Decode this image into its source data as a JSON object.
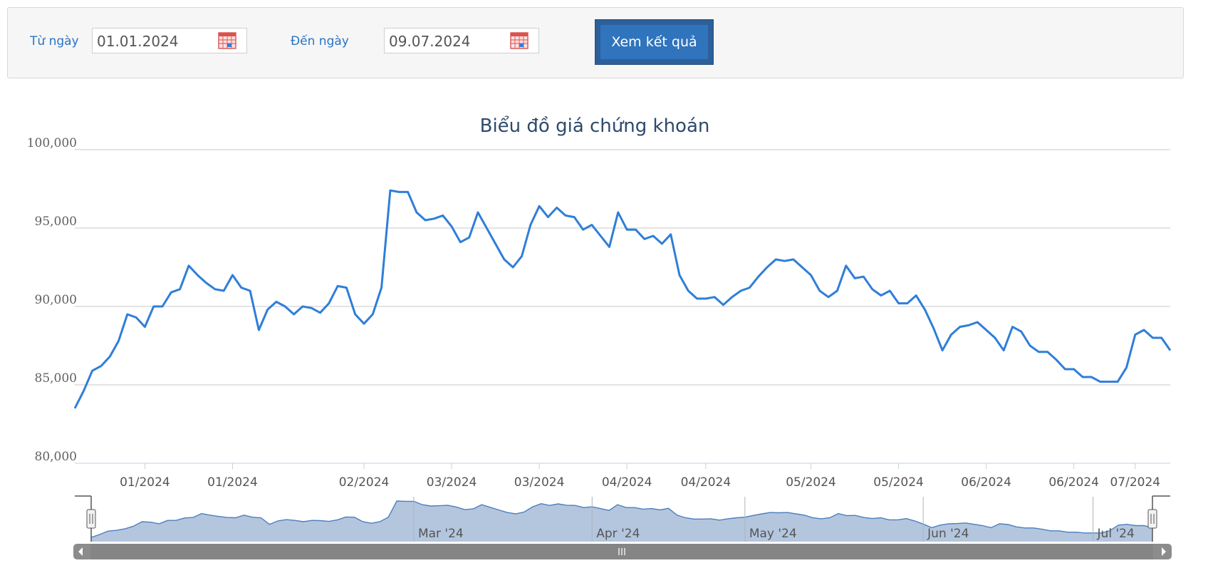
{
  "filter": {
    "from_label": "Từ ngày",
    "from_value": "01.01.2024",
    "to_label": "Đến ngày",
    "to_value": "09.07.2024",
    "submit_label": "Xem kết quả"
  },
  "chart_data": {
    "type": "line",
    "title": "Biểu đồ giá chứng khoán",
    "ylim": [
      80000,
      100000
    ],
    "yticks": [
      "100,000",
      "95,000",
      "90,000",
      "85,000",
      "80,000"
    ],
    "ytick_values": [
      100000,
      95000,
      90000,
      85000,
      80000
    ],
    "xtick_labels": [
      "01/2024",
      "01/2024",
      "02/2024",
      "03/2024",
      "03/2024",
      "04/2024",
      "04/2024",
      "05/2024",
      "05/2024",
      "06/2024",
      "06/2024",
      "07/2024"
    ],
    "xtick_index": [
      8,
      18,
      33,
      43,
      53,
      63,
      72,
      84,
      94,
      104,
      114,
      121
    ],
    "grid": true,
    "legend": "none",
    "series_color": "#2f7ed8",
    "navigator_labels": [
      "Mar '24",
      "Apr '24",
      "May '24",
      "Jun '24",
      "Jul '24"
    ],
    "navigator_index": [
      38,
      59,
      77,
      98,
      118
    ],
    "series": [
      {
        "values": [
          83500,
          84600,
          85900,
          86200,
          86800,
          87800,
          89500,
          89300,
          88700,
          90000,
          90000,
          90900,
          91100,
          92600,
          92000,
          91500,
          91100,
          91000,
          92000,
          91200,
          91000,
          88500,
          89800,
          90300,
          90000,
          89500,
          90000,
          89900,
          89600,
          90200,
          91300,
          91200,
          89500,
          88900,
          89500,
          91200,
          97400,
          97300,
          97300,
          96000,
          95500,
          95600,
          95800,
          95100,
          94100,
          94400,
          96000,
          95000,
          94000,
          93000,
          92500,
          93200,
          95200,
          96400,
          95700,
          96300,
          95800,
          95700,
          94900,
          95200,
          94500,
          93800,
          96000,
          94900,
          94900,
          94300,
          94500,
          94000,
          94600,
          92000,
          91000,
          90500,
          90500,
          90600,
          90100,
          90600,
          91000,
          91200,
          91900,
          92500,
          93000,
          92900,
          93000,
          92500,
          92000,
          91000,
          90600,
          91000,
          92600,
          91800,
          91900,
          91100,
          90700,
          91000,
          90200,
          90200,
          90700,
          89800,
          88600,
          87200,
          88200,
          88700,
          88800,
          89000,
          88500,
          88000,
          87200,
          88700,
          88400,
          87500,
          87100,
          87100,
          86600,
          86000,
          86000,
          85500,
          85500,
          85200,
          85200,
          85200,
          86100,
          88200,
          88500,
          88000,
          88000,
          87200
        ]
      }
    ]
  }
}
